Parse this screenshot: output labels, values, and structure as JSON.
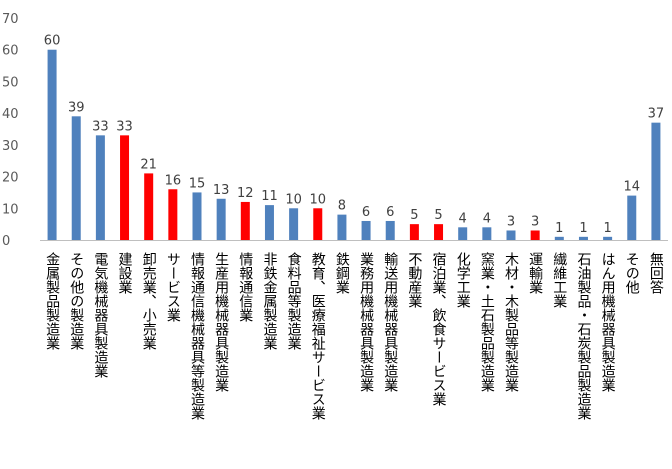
{
  "chart_data": {
    "type": "bar",
    "title": "",
    "xlabel": "",
    "ylabel": "",
    "ylim": [
      0,
      70
    ],
    "yticks": [
      0,
      10,
      20,
      30,
      40,
      50,
      60,
      70
    ],
    "grid": false,
    "legend": "none",
    "categories": [
      "金属製品製造業",
      "その他の製造業",
      "電気機械器具製造業",
      "建設業",
      "卸売業、小売業",
      "サービス業",
      "情報通信機械器具等製造業",
      "生産用機械器具製造業",
      "情報通信業",
      "非鉄金属製造業",
      "食料品等製造業",
      "教育、医療福祉サービス業",
      "鉄鋼業",
      "業務用機械器具製造業",
      "輸送用機械器具製造業",
      "不動産業",
      "宿泊業、飲食サービス業",
      "化学工業",
      "窯業・土石製品製造業",
      "木材・木製品等製造業",
      "運輸業",
      "繊維工業",
      "石油製品・石炭製品製造業",
      "はん用機械器具製造業",
      "その他",
      "無回答"
    ],
    "values": [
      60,
      39,
      33,
      33,
      21,
      16,
      15,
      13,
      12,
      11,
      10,
      10,
      8,
      6,
      6,
      5,
      5,
      4,
      4,
      3,
      3,
      1,
      1,
      1,
      14,
      37
    ],
    "bar_colors": [
      "#4F81BD",
      "#4F81BD",
      "#4F81BD",
      "#FF0000",
      "#FF0000",
      "#FF0000",
      "#4F81BD",
      "#4F81BD",
      "#FF0000",
      "#4F81BD",
      "#4F81BD",
      "#FF0000",
      "#4F81BD",
      "#4F81BD",
      "#4F81BD",
      "#FF0000",
      "#FF0000",
      "#4F81BD",
      "#4F81BD",
      "#4F81BD",
      "#FF0000",
      "#4F81BD",
      "#4F81BD",
      "#4F81BD",
      "#4F81BD",
      "#4F81BD"
    ],
    "axis_color": "#BFBFBF"
  }
}
